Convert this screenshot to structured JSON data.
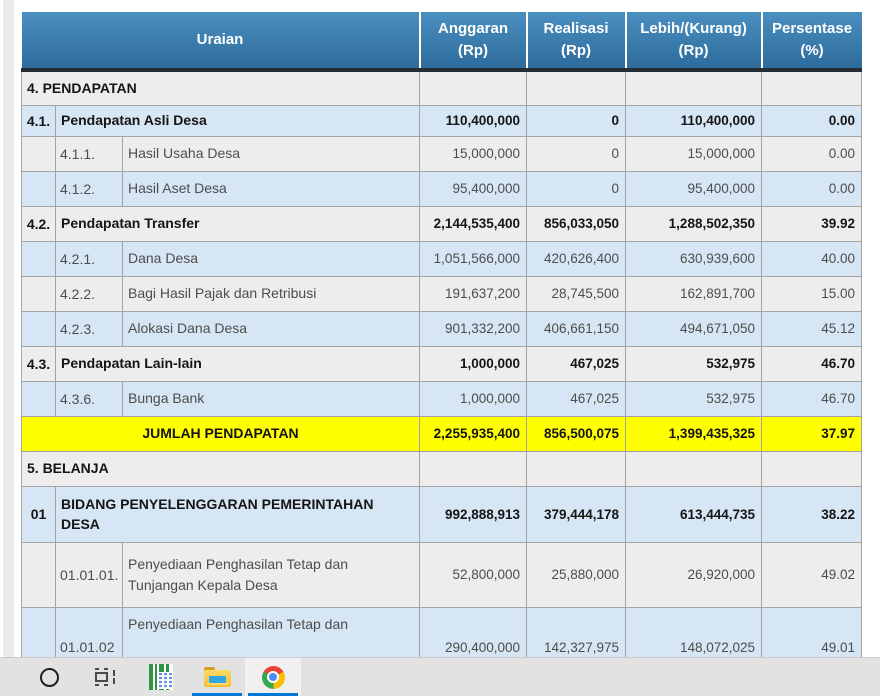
{
  "report_table": {
    "header": {
      "uraian": "Uraian",
      "cols": [
        {
          "key": "anggaran",
          "label": "Anggaran",
          "unit": "(Rp)"
        },
        {
          "key": "realisasi",
          "label": "Realisasi",
          "unit": "(Rp)"
        },
        {
          "key": "lebih-kurang",
          "label": "Lebih/(Kurang)",
          "unit": "(Rp)"
        },
        {
          "key": "persentase",
          "label": "Persentase",
          "unit": "(%)"
        }
      ]
    },
    "rows": [
      {
        "type": "section",
        "code": "",
        "text": "4. PENDAPATAN",
        "anggaran": "",
        "realisasi": "",
        "lebih_kurang": "",
        "persentase": "",
        "shade": "gray"
      },
      {
        "type": "group",
        "code": "4.1.",
        "text": "Pendapatan Asli Desa",
        "anggaran": "110,400,000",
        "realisasi": "0",
        "lebih_kurang": "110,400,000",
        "persentase": "0.00",
        "shade": "blue"
      },
      {
        "type": "item",
        "code": "4.1.1.",
        "text": "Hasil Usaha Desa",
        "anggaran": "15,000,000",
        "realisasi": "0",
        "lebih_kurang": "15,000,000",
        "persentase": "0.00",
        "shade": "gray"
      },
      {
        "type": "item",
        "code": "4.1.2.",
        "text": "Hasil Aset Desa",
        "anggaran": "95,400,000",
        "realisasi": "0",
        "lebih_kurang": "95,400,000",
        "persentase": "0.00",
        "shade": "blue"
      },
      {
        "type": "group",
        "code": "4.2.",
        "text": "Pendapatan Transfer",
        "anggaran": "2,144,535,400",
        "realisasi": "856,033,050",
        "lebih_kurang": "1,288,502,350",
        "persentase": "39.92",
        "shade": "gray"
      },
      {
        "type": "item",
        "code": "4.2.1.",
        "text": "Dana Desa",
        "anggaran": "1,051,566,000",
        "realisasi": "420,626,400",
        "lebih_kurang": "630,939,600",
        "persentase": "40.00",
        "shade": "blue"
      },
      {
        "type": "item",
        "code": "4.2.2.",
        "text": "Bagi Hasil Pajak dan Retribusi",
        "anggaran": "191,637,200",
        "realisasi": "28,745,500",
        "lebih_kurang": "162,891,700",
        "persentase": "15.00",
        "shade": "gray"
      },
      {
        "type": "item",
        "code": "4.2.3.",
        "text": "Alokasi Dana Desa",
        "anggaran": "901,332,200",
        "realisasi": "406,661,150",
        "lebih_kurang": "494,671,050",
        "persentase": "45.12",
        "shade": "blue"
      },
      {
        "type": "group",
        "code": "4.3.",
        "text": "Pendapatan Lain-lain",
        "anggaran": "1,000,000",
        "realisasi": "467,025",
        "lebih_kurang": "532,975",
        "persentase": "46.70",
        "shade": "gray"
      },
      {
        "type": "item",
        "code": "4.3.6.",
        "text": "Bunga Bank",
        "anggaran": "1,000,000",
        "realisasi": "467,025",
        "lebih_kurang": "532,975",
        "persentase": "46.70",
        "shade": "blue"
      },
      {
        "type": "total",
        "code": "",
        "text": "JUMLAH PENDAPATAN",
        "anggaran": "2,255,935,400",
        "realisasi": "856,500,075",
        "lebih_kurang": "1,399,435,325",
        "persentase": "37.97",
        "shade": "yellow"
      },
      {
        "type": "section",
        "code": "",
        "text": "5. BELANJA",
        "anggaran": "",
        "realisasi": "",
        "lebih_kurang": "",
        "persentase": "",
        "shade": "gray"
      },
      {
        "type": "bidang",
        "code": "01",
        "text": "BIDANG PENYELENGGARAN PEMERINTAHAN DESA",
        "anggaran": "992,888,913",
        "realisasi": "379,444,178",
        "lebih_kurang": "613,444,735",
        "persentase": "38.22",
        "shade": "blue"
      },
      {
        "type": "item",
        "code": "01.01.01.",
        "text": "Penyediaan Penghasilan Tetap dan Tunjangan Kepala Desa",
        "anggaran": "52,800,000",
        "realisasi": "25,880,000",
        "lebih_kurang": "26,920,000",
        "persentase": "49.02",
        "shade": "gray"
      },
      {
        "type": "item",
        "code": "01.01.02",
        "text": "Penyediaan Penghasilan Tetap dan",
        "anggaran": "290,400,000",
        "realisasi": "142,327,975",
        "lebih_kurang": "148,072,025",
        "persentase": "49.01",
        "shade": "blue"
      }
    ]
  },
  "taskbar": {
    "accent_color": "#0078d7",
    "items": [
      {
        "id": "cortana",
        "icon": "cortana-icon",
        "running": false,
        "active": false
      },
      {
        "id": "task-view",
        "icon": "task-view-icon",
        "running": false,
        "active": false
      },
      {
        "id": "siskeudes-app",
        "icon": "app-barcode-icon",
        "running": false,
        "active": false
      },
      {
        "id": "file-explorer",
        "icon": "file-explorer-icon",
        "running": true,
        "active": false
      },
      {
        "id": "chrome",
        "icon": "chrome-icon",
        "running": true,
        "active": true
      }
    ]
  },
  "colors": {
    "header_blue_top": "#4a8fc0",
    "header_blue_bottom": "#2e6c9c",
    "header_dark_border": "#242c35",
    "row_gray": "#ededed",
    "row_blue": "#d6e6f4",
    "row_total_yellow": "#ffff00",
    "taskbar_bg": "#e2e2e2"
  }
}
